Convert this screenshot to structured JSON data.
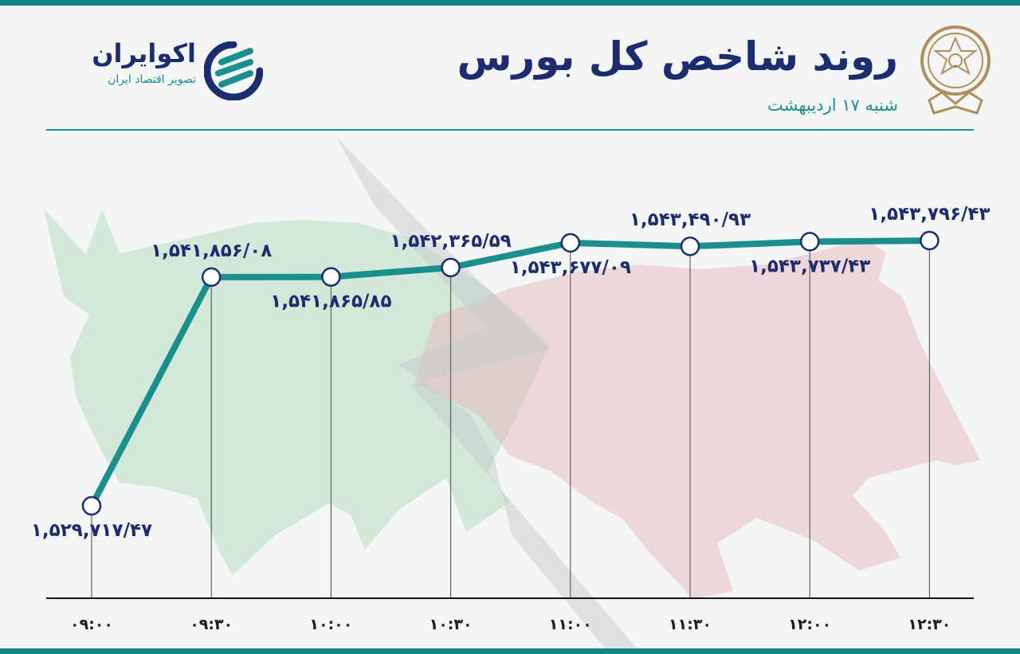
{
  "header": {
    "title": "روند شاخص کل بورس",
    "date": "شنبه ۱۷ اردیبهشت"
  },
  "brand": {
    "name": "اکوایران",
    "tagline": "تصویر اقتصاد ایران"
  },
  "colors": {
    "accent": "#1b8f8e",
    "navy": "#1c2c6e",
    "bull": "#b7ddbf",
    "bear": "#e6b9bb"
  },
  "icons": {
    "seal": "stock-exchange-seal-icon",
    "logo": "ecoiran-logo-icon"
  },
  "chart_data": {
    "type": "line",
    "categories": [
      "۰۹:۰۰",
      "۰۹:۳۰",
      "۱۰:۰۰",
      "۱۰:۳۰",
      "۱۱:۰۰",
      "۱۱:۳۰",
      "۱۲:۰۰",
      "۱۲:۳۰"
    ],
    "values": [
      1529717.47,
      1541856.08,
      1541865.85,
      1542365.59,
      1543677.09,
      1543490.93,
      1543737.43,
      1543796.43
    ],
    "labels": [
      "۱,۵۲۹,۷۱۷/۴۷",
      "۱,۵۴۱,۸۵۶/۰۸",
      "۱,۵۴۱,۸۶۵/۸۵",
      "۱,۵۴۲,۳۶۵/۵۹",
      "۱,۵۴۳,۶۷۷/۰۹",
      "۱,۵۴۳,۴۹۰/۹۳",
      "۱,۵۴۳,۷۳۷/۴۳",
      "۱,۵۴۳,۷۹۶/۴۳"
    ],
    "label_position": [
      "below",
      "above",
      "below",
      "above",
      "below",
      "above",
      "below",
      "above"
    ],
    "grid": false
  }
}
